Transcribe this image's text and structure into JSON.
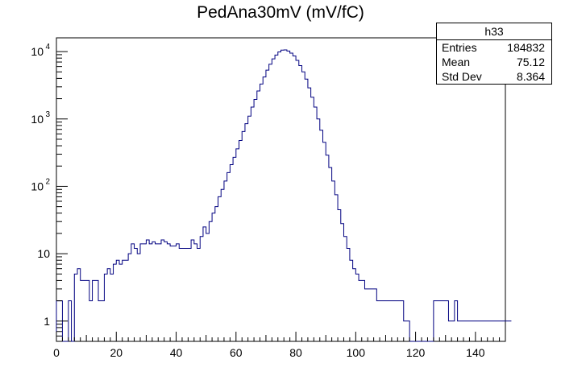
{
  "chart_data": {
    "type": "histogram",
    "title": "PedAna30mV (mV/fC)",
    "xlabel": "",
    "ylabel": "",
    "xlim": [
      0,
      150
    ],
    "ylim": [
      0.5,
      16000
    ],
    "yscale": "log",
    "bin_width": 1,
    "x_ticks": [
      "0",
      "20",
      "40",
      "60",
      "80",
      "100",
      "120",
      "140"
    ],
    "y_ticks": [
      {
        "value": 1,
        "label": "1"
      },
      {
        "value": 10,
        "label": "10"
      },
      {
        "value": 100,
        "label": "10",
        "exp": "2"
      },
      {
        "value": 1000,
        "label": "10",
        "exp": "3"
      },
      {
        "value": 10000,
        "label": "10",
        "exp": "4"
      }
    ],
    "line_color": "#000080",
    "counts": [
      2,
      2,
      0,
      0,
      2,
      0,
      5,
      6,
      4,
      4,
      4,
      2,
      4,
      4,
      2,
      2,
      5,
      6,
      5,
      7,
      8,
      7,
      8,
      8,
      10,
      14,
      12,
      10,
      14,
      14,
      16,
      14,
      15,
      14,
      14,
      16,
      15,
      14,
      13,
      13,
      14,
      12,
      12,
      12,
      12,
      16,
      14,
      12,
      18,
      25,
      20,
      30,
      40,
      50,
      70,
      90,
      120,
      160,
      210,
      270,
      360,
      480,
      650,
      850,
      1100,
      1500,
      1950,
      2600,
      3300,
      4200,
      5300,
      6500,
      7800,
      8900,
      9900,
      10500,
      10600,
      10200,
      9500,
      8600,
      7400,
      6200,
      5000,
      3900,
      2900,
      2100,
      1500,
      1000,
      680,
      450,
      290,
      190,
      120,
      75,
      45,
      28,
      18,
      12,
      8,
      6,
      5,
      4,
      4,
      3,
      3,
      3,
      3,
      2,
      2,
      2,
      2,
      2,
      2,
      2,
      2,
      2,
      1,
      1,
      0,
      0,
      0,
      0,
      0,
      0,
      0,
      0,
      2,
      2,
      2,
      2,
      2,
      1,
      1,
      2,
      1,
      1,
      1,
      1,
      1,
      1,
      1,
      1,
      1,
      1,
      1,
      1,
      1,
      1,
      1,
      1,
      1,
      1
    ],
    "stats": {
      "name": "h33",
      "rows": [
        {
          "label": "Entries",
          "value": "184832"
        },
        {
          "label": "Mean",
          "value": "75.12"
        },
        {
          "label": "Std Dev",
          "value": "8.364"
        }
      ]
    }
  }
}
